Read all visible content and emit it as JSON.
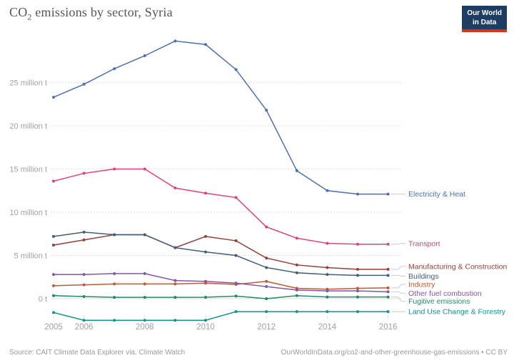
{
  "header": {
    "title_co": "CO",
    "title_sub": "2",
    "title_rest": " emissions by sector, Syria"
  },
  "logo": {
    "line1": "Our World",
    "line2": "in Data",
    "bg": "#1d3d63",
    "accent": "#e0311b"
  },
  "footer": {
    "source": "Source: CAIT Climate Data Explorer via. Climate Watch",
    "link": "OurWorldInData.org/co2-and-other-greenhouse-gas-emissions • CC BY"
  },
  "chart_data": {
    "type": "line",
    "title": "CO2 emissions by sector, Syria",
    "xlabel": "",
    "ylabel": "",
    "grid": "horizontal-dashed",
    "legend_position": "right",
    "ylim": [
      -3,
      31
    ],
    "x": [
      2005,
      2006,
      2007,
      2008,
      2009,
      2010,
      2011,
      2012,
      2013,
      2014,
      2015,
      2016
    ],
    "x_tick_years": [
      2005,
      2006,
      2008,
      2010,
      2012,
      2014,
      2016
    ],
    "y_ticks": [
      {
        "value": 0,
        "label": "0 t"
      },
      {
        "value": 5,
        "label": "5 million t"
      },
      {
        "value": 10,
        "label": "10 million t"
      },
      {
        "value": 15,
        "label": "15 million t"
      },
      {
        "value": 20,
        "label": "20 million t"
      },
      {
        "value": 25,
        "label": "25 million t"
      }
    ],
    "unit": "million tonnes",
    "series": [
      {
        "name": "Electricity & Heat",
        "color": "#4d6fb0",
        "values": [
          23.3,
          24.8,
          26.6,
          28.1,
          29.8,
          29.4,
          26.5,
          21.8,
          14.8,
          12.5,
          12.1,
          12.1
        ]
      },
      {
        "name": "Transport",
        "color": "#e0417a",
        "values": [
          13.6,
          14.5,
          15.0,
          15.0,
          12.8,
          12.2,
          11.7,
          8.3,
          7.0,
          6.4,
          6.3,
          6.3
        ]
      },
      {
        "name": "Manufacturing & Construction",
        "color": "#95413b",
        "values": [
          6.2,
          6.8,
          7.4,
          7.4,
          5.9,
          7.2,
          6.7,
          4.7,
          3.9,
          3.6,
          3.4,
          3.4
        ]
      },
      {
        "name": "Buildings",
        "color": "#435e77",
        "values": [
          7.2,
          7.7,
          7.4,
          7.4,
          5.9,
          5.4,
          5.0,
          3.6,
          3.0,
          2.8,
          2.7,
          2.7
        ]
      },
      {
        "name": "Industry",
        "color": "#bf5b32",
        "values": [
          1.5,
          1.6,
          1.7,
          1.7,
          1.7,
          1.8,
          1.65,
          2.0,
          1.2,
          1.1,
          1.2,
          1.25
        ]
      },
      {
        "name": "Other fuel combustion",
        "color": "#8356a6",
        "values": [
          2.8,
          2.8,
          2.9,
          2.9,
          2.1,
          2.0,
          1.8,
          1.4,
          1.0,
          0.9,
          0.9,
          0.8
        ]
      },
      {
        "name": "Fugitive emissions",
        "color": "#218c61",
        "values": [
          0.35,
          0.25,
          0.15,
          0.15,
          0.15,
          0.17,
          0.3,
          0.0,
          0.35,
          0.2,
          0.2,
          0.2
        ]
      },
      {
        "name": "Land Use Change & Forestry",
        "color": "#16948c",
        "values": [
          -1.6,
          -2.5,
          -2.5,
          -2.5,
          -2.5,
          -2.5,
          -1.5,
          -1.5,
          -1.5,
          -1.5,
          -1.5,
          -1.5
        ]
      }
    ]
  }
}
